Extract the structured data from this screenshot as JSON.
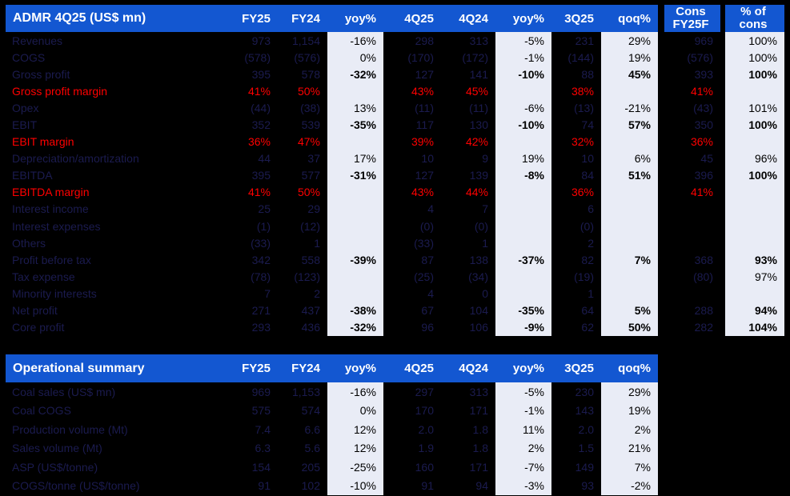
{
  "colors": {
    "header_bg": "#1357D1",
    "header_text": "#FFFFFF",
    "body_bg": "#000000",
    "hidden_value_text": "#1B1B4F",
    "margin_row_text": "#FF0000",
    "pct_column_bg": "#E9ECF6",
    "pct_column_text": "#000000"
  },
  "table1": {
    "title": "ADMR 4Q25 (US$ mn)",
    "headers": {
      "fy25": "FY25",
      "fy24": "FY24",
      "yoy1": "yoy%",
      "q425": "4Q25",
      "q424": "4Q24",
      "yoy2": "yoy%",
      "q325": "3Q25",
      "qoq": "qoq%",
      "cons_l1": "Cons",
      "cons_l2": "FY25F",
      "pcons_l1": "% of",
      "pcons_l2": "cons"
    },
    "rows": [
      {
        "label": "Revenues",
        "red": false,
        "bold": false,
        "v": [
          "973",
          "1,154",
          "-16%",
          "298",
          "313",
          "-5%",
          "231",
          "29%",
          "969",
          "100%"
        ]
      },
      {
        "label": "COGS",
        "red": false,
        "bold": false,
        "v": [
          "(578)",
          "(576)",
          "0%",
          "(170)",
          "(172)",
          "-1%",
          "(144)",
          "19%",
          "(576)",
          "100%"
        ]
      },
      {
        "label": "Gross profit",
        "red": false,
        "bold": true,
        "v": [
          "395",
          "578",
          "-32%",
          "127",
          "141",
          "-10%",
          "88",
          "45%",
          "393",
          "100%"
        ]
      },
      {
        "label": "Gross profit margin",
        "red": true,
        "bold": false,
        "v": [
          "41%",
          "50%",
          "",
          "43%",
          "45%",
          "",
          "38%",
          "",
          "41%",
          ""
        ]
      },
      {
        "label": "Opex",
        "red": false,
        "bold": false,
        "v": [
          "(44)",
          "(38)",
          "13%",
          "(11)",
          "(11)",
          "-6%",
          "(13)",
          "-21%",
          "(43)",
          "101%"
        ]
      },
      {
        "label": "EBIT",
        "red": false,
        "bold": true,
        "v": [
          "352",
          "539",
          "-35%",
          "117",
          "130",
          "-10%",
          "74",
          "57%",
          "350",
          "100%"
        ]
      },
      {
        "label": "EBIT margin",
        "red": true,
        "bold": false,
        "v": [
          "36%",
          "47%",
          "",
          "39%",
          "42%",
          "",
          "32%",
          "",
          "36%",
          ""
        ]
      },
      {
        "label": "Depreciation/amortization",
        "red": false,
        "bold": false,
        "v": [
          "44",
          "37",
          "17%",
          "10",
          "9",
          "19%",
          "10",
          "6%",
          "45",
          "96%"
        ]
      },
      {
        "label": "EBITDA",
        "red": false,
        "bold": true,
        "v": [
          "395",
          "577",
          "-31%",
          "127",
          "139",
          "-8%",
          "84",
          "51%",
          "396",
          "100%"
        ]
      },
      {
        "label": "EBITDA margin",
        "red": true,
        "bold": false,
        "v": [
          "41%",
          "50%",
          "",
          "43%",
          "44%",
          "",
          "36%",
          "",
          "41%",
          ""
        ]
      },
      {
        "label": "Interest income",
        "red": false,
        "bold": false,
        "v": [
          "25",
          "29",
          "",
          "4",
          "7",
          "",
          "6",
          "",
          "",
          ""
        ]
      },
      {
        "label": "Interest expenses",
        "red": false,
        "bold": false,
        "v": [
          "(1)",
          "(12)",
          "",
          "(0)",
          "(0)",
          "",
          "(0)",
          "",
          "",
          ""
        ]
      },
      {
        "label": "Others",
        "red": false,
        "bold": false,
        "v": [
          "(33)",
          "1",
          "",
          "(33)",
          "1",
          "",
          "2",
          "",
          "",
          ""
        ]
      },
      {
        "label": "Profit before tax",
        "red": false,
        "bold": true,
        "v": [
          "342",
          "558",
          "-39%",
          "87",
          "138",
          "-37%",
          "82",
          "7%",
          "368",
          "93%"
        ]
      },
      {
        "label": "Tax expense",
        "red": false,
        "bold": false,
        "v": [
          "(78)",
          "(123)",
          "",
          "(25)",
          "(34)",
          "",
          "(19)",
          "",
          "(80)",
          "97%"
        ]
      },
      {
        "label": "Minority interests",
        "red": false,
        "bold": false,
        "v": [
          "7",
          "2",
          "",
          "4",
          "0",
          "",
          "1",
          "",
          "",
          ""
        ]
      },
      {
        "label": "Net profit",
        "red": false,
        "bold": true,
        "v": [
          "271",
          "437",
          "-38%",
          "67",
          "104",
          "-35%",
          "64",
          "5%",
          "288",
          "94%"
        ]
      },
      {
        "label": "Core profit",
        "red": false,
        "bold": true,
        "v": [
          "293",
          "436",
          "-32%",
          "96",
          "106",
          "-9%",
          "62",
          "50%",
          "282",
          "104%"
        ]
      }
    ]
  },
  "table2": {
    "title": "Operational summary",
    "headers": {
      "fy25": "FY25",
      "fy24": "FY24",
      "yoy1": "yoy%",
      "q425": "4Q25",
      "q424": "4Q24",
      "yoy2": "yoy%",
      "q325": "3Q25",
      "qoq": "qoq%"
    },
    "rows": [
      {
        "label": "Coal sales (US$ mn)",
        "v": [
          "969",
          "1,153",
          "-16%",
          "297",
          "313",
          "-5%",
          "230",
          "29%"
        ]
      },
      {
        "label": "Coal COGS",
        "v": [
          "575",
          "574",
          "0%",
          "170",
          "171",
          "-1%",
          "143",
          "19%"
        ]
      },
      {
        "label": "Production volume (Mt)",
        "v": [
          "7.4",
          "6.6",
          "12%",
          "2.0",
          "1.8",
          "11%",
          "2.0",
          "2%"
        ]
      },
      {
        "label": "Sales volume (Mt)",
        "v": [
          "6.3",
          "5.6",
          "12%",
          "1.9",
          "1.8",
          "2%",
          "1.5",
          "21%"
        ]
      },
      {
        "label": "ASP (US$/tonne)",
        "v": [
          "154",
          "205",
          "-25%",
          "160",
          "171",
          "-7%",
          "149",
          "7%"
        ]
      },
      {
        "label": "COGS/tonne (US$/tonne)",
        "v": [
          "91",
          "102",
          "-10%",
          "91",
          "94",
          "-3%",
          "93",
          "-2%"
        ]
      }
    ]
  }
}
